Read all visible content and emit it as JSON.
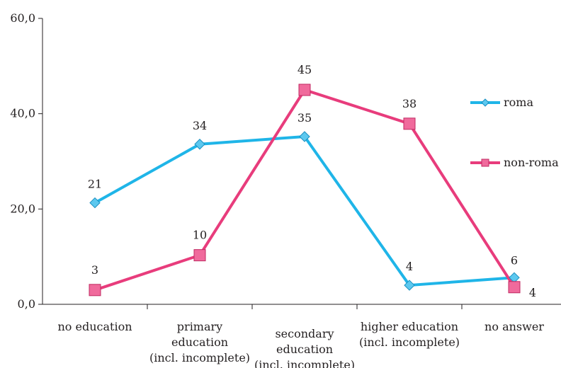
{
  "chart_data": {
    "type": "line",
    "title": "",
    "xlabel": "",
    "ylabel": "",
    "ylim": [
      0,
      60
    ],
    "yticks": [
      "0,0",
      "20,0",
      "40,0",
      "60,0"
    ],
    "ytick_values": [
      0,
      20,
      40,
      60
    ],
    "categories": [
      [
        "no education"
      ],
      [
        "primary",
        "education",
        "(incl. incomplete)"
      ],
      [
        "secondary",
        "education",
        "(incl. incomplete)"
      ],
      [
        "higher education",
        "(incl. incomplete)"
      ],
      [
        "no answer"
      ]
    ],
    "grid": false,
    "legend_position": "right",
    "series": [
      {
        "name": "roma",
        "color": "#1fb5e8",
        "marker": "diamond",
        "values": [
          21.3,
          33.6,
          35.2,
          4.0,
          5.6
        ],
        "labels": [
          "21",
          "34",
          "35",
          "4",
          "6"
        ]
      },
      {
        "name": "non-roma",
        "color": "#e83c7c",
        "marker": "square",
        "values": [
          3.0,
          10.3,
          45.0,
          37.9,
          3.6
        ],
        "labels": [
          "3",
          "10",
          "45",
          "38",
          "4"
        ]
      }
    ]
  }
}
